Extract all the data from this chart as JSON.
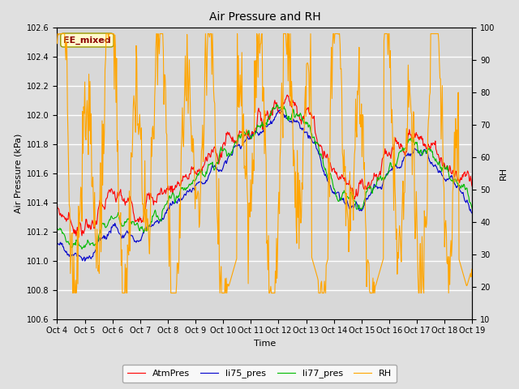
{
  "title": "Air Pressure and RH",
  "xlabel": "Time",
  "ylabel_left": "Air Pressure (kPa)",
  "ylabel_right": "RH",
  "ylim_left": [
    100.6,
    102.6
  ],
  "ylim_right": [
    10,
    100
  ],
  "xtick_labels": [
    "Oct 4",
    "Oct 5",
    "Oct 6",
    "Oct 7",
    "Oct 8",
    "Oct 9",
    "Oct 10",
    "Oct 11",
    "Oct 12",
    "Oct 13",
    "Oct 14",
    "Oct 15",
    "Oct 16",
    "Oct 17",
    "Oct 18",
    "Oct 19"
  ],
  "annotation_text": "EE_mixed",
  "annotation_text_color": "#8B0000",
  "annotation_box_facecolor": "#FFFACD",
  "annotation_box_edgecolor": "#999900",
  "fig_facecolor": "#E0E0E0",
  "plot_facecolor": "#D8D8D8",
  "colors": {
    "AtmPres": "#FF0000",
    "li75_pres": "#0000CC",
    "li77_pres": "#00BB00",
    "RH": "#FFA500"
  },
  "legend_labels": [
    "AtmPres",
    "li75_pres",
    "li77_pres",
    "RH"
  ],
  "n_points": 720,
  "seed": 7
}
